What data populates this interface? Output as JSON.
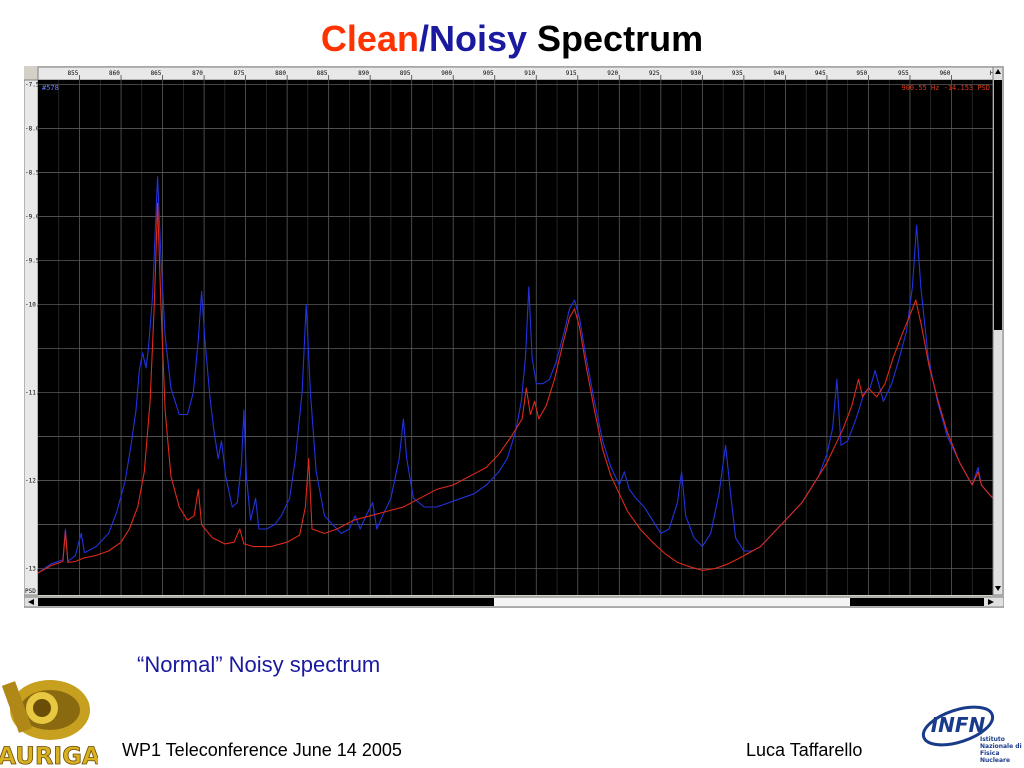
{
  "slide": {
    "title_part1": "Clean",
    "title_sep": "/",
    "title_part2": "Noisy",
    "title_part3": " Spectrum",
    "caption": "“Normal” Noisy spectrum",
    "footer_left": "WP1 Teleconference June 14 2005",
    "footer_right": "Luca Taffarello",
    "logo_left_text": "AURIGA",
    "logo_right_text": "INFN",
    "logo_right_sub": "Istituto Nazionale di Fisica Nucleare"
  },
  "colors": {
    "title_red": "#ff3300",
    "title_blue": "#1a1aa0",
    "plot_bg": "#000000",
    "grid": "#5a5a5a",
    "noisy_series": "#2233dd",
    "clean_series": "#dd2a1a",
    "caption": "#1a1aa0"
  },
  "chart_data": {
    "type": "line",
    "top_left_label": "#578",
    "top_right_label": "900.55 Hz  -14.153 PSD",
    "ylabel": "PSD",
    "xlabel": "Hz",
    "xlim": [
      850,
      965
    ],
    "ylim": [
      -13.3,
      -7.45
    ],
    "x_ticks": [
      "855",
      "860",
      "865",
      "870",
      "875",
      "880",
      "885",
      "890",
      "895",
      "900",
      "905",
      "910",
      "915",
      "920",
      "925",
      "930",
      "935",
      "940",
      "945",
      "950",
      "955",
      "960",
      "Hz"
    ],
    "y_ticks": [
      "-7.5",
      "-8.0",
      "-8.5",
      "-9.0",
      "-9.5",
      "-10.",
      "-11.",
      "-12.",
      "-13."
    ],
    "grid": true,
    "series": [
      {
        "key": "noisy",
        "color": "#2233dd",
        "points": [
          [
            850.0,
            -13.05
          ],
          [
            851.5,
            -12.95
          ],
          [
            853.0,
            -12.9
          ],
          [
            853.3,
            -12.55
          ],
          [
            853.6,
            -12.92
          ],
          [
            854.5,
            -12.85
          ],
          [
            855.2,
            -12.6
          ],
          [
            855.6,
            -12.82
          ],
          [
            857,
            -12.75
          ],
          [
            858.5,
            -12.6
          ],
          [
            859.5,
            -12.35
          ],
          [
            860.5,
            -12.0
          ],
          [
            861.2,
            -11.6
          ],
          [
            861.8,
            -11.2
          ],
          [
            862.2,
            -10.75
          ],
          [
            862.6,
            -10.55
          ],
          [
            863.0,
            -10.72
          ],
          [
            863.3,
            -10.5
          ],
          [
            863.8,
            -9.9
          ],
          [
            864.1,
            -9.2
          ],
          [
            864.4,
            -8.55
          ],
          [
            864.8,
            -9.45
          ],
          [
            865.3,
            -10.35
          ],
          [
            866,
            -10.95
          ],
          [
            867,
            -11.25
          ],
          [
            868,
            -11.25
          ],
          [
            868.7,
            -11.0
          ],
          [
            869.3,
            -10.4
          ],
          [
            869.7,
            -9.85
          ],
          [
            870.1,
            -10.4
          ],
          [
            870.7,
            -11.05
          ],
          [
            871.2,
            -11.45
          ],
          [
            871.7,
            -11.75
          ],
          [
            872.1,
            -11.55
          ],
          [
            872.6,
            -11.95
          ],
          [
            873.4,
            -12.3
          ],
          [
            874.0,
            -12.25
          ],
          [
            874.5,
            -11.8
          ],
          [
            874.8,
            -11.2
          ],
          [
            875.1,
            -11.95
          ],
          [
            875.6,
            -12.45
          ],
          [
            876.2,
            -12.2
          ],
          [
            876.6,
            -12.55
          ],
          [
            877.5,
            -12.55
          ],
          [
            878.5,
            -12.5
          ],
          [
            879.3,
            -12.4
          ],
          [
            880.3,
            -12.2
          ],
          [
            881,
            -11.75
          ],
          [
            881.8,
            -11.0
          ],
          [
            882.3,
            -10.0
          ],
          [
            882.8,
            -11.0
          ],
          [
            883.5,
            -11.9
          ],
          [
            884.5,
            -12.4
          ],
          [
            885.5,
            -12.5
          ],
          [
            886.5,
            -12.6
          ],
          [
            887.5,
            -12.55
          ],
          [
            888.2,
            -12.4
          ],
          [
            888.8,
            -12.55
          ],
          [
            889.5,
            -12.4
          ],
          [
            890.3,
            -12.25
          ],
          [
            890.8,
            -12.55
          ],
          [
            891.5,
            -12.4
          ],
          [
            892.5,
            -12.2
          ],
          [
            893.5,
            -11.75
          ],
          [
            894.0,
            -11.3
          ],
          [
            894.4,
            -11.75
          ],
          [
            895.2,
            -12.2
          ],
          [
            896.5,
            -12.3
          ],
          [
            898,
            -12.3
          ],
          [
            899.5,
            -12.25
          ],
          [
            901,
            -12.2
          ],
          [
            902.5,
            -12.15
          ],
          [
            904,
            -12.05
          ],
          [
            905.5,
            -11.9
          ],
          [
            906.5,
            -11.75
          ],
          [
            907.5,
            -11.45
          ],
          [
            908.2,
            -11.1
          ],
          [
            908.7,
            -10.6
          ],
          [
            909.1,
            -9.8
          ],
          [
            909.5,
            -10.6
          ],
          [
            910,
            -10.9
          ],
          [
            910.8,
            -10.9
          ],
          [
            911.6,
            -10.85
          ],
          [
            912.4,
            -10.65
          ],
          [
            913.4,
            -10.3
          ],
          [
            914.0,
            -10.05
          ],
          [
            914.6,
            -9.95
          ],
          [
            915.2,
            -10.15
          ],
          [
            916.0,
            -10.6
          ],
          [
            917.0,
            -11.1
          ],
          [
            918.0,
            -11.55
          ],
          [
            919.0,
            -11.85
          ],
          [
            920.0,
            -12.05
          ],
          [
            920.6,
            -11.9
          ],
          [
            921.2,
            -12.1
          ],
          [
            922,
            -12.2
          ],
          [
            923.0,
            -12.3
          ],
          [
            924.0,
            -12.45
          ],
          [
            925.0,
            -12.6
          ],
          [
            926.0,
            -12.55
          ],
          [
            927.0,
            -12.25
          ],
          [
            927.5,
            -11.9
          ],
          [
            928.0,
            -12.4
          ],
          [
            929.0,
            -12.65
          ],
          [
            930.0,
            -12.75
          ],
          [
            931.0,
            -12.6
          ],
          [
            932.0,
            -12.15
          ],
          [
            932.8,
            -11.6
          ],
          [
            933.4,
            -12.15
          ],
          [
            934.0,
            -12.65
          ],
          [
            935.0,
            -12.8
          ],
          [
            936,
            -12.8
          ],
          [
            937,
            -12.75
          ],
          [
            938,
            -12.65
          ],
          [
            939,
            -12.55
          ],
          [
            940,
            -12.45
          ],
          [
            941,
            -12.35
          ],
          [
            942,
            -12.25
          ],
          [
            943,
            -12.1
          ],
          [
            944,
            -11.95
          ],
          [
            945,
            -11.7
          ],
          [
            945.7,
            -11.4
          ],
          [
            946.2,
            -10.85
          ],
          [
            946.7,
            -11.6
          ],
          [
            947.5,
            -11.55
          ],
          [
            948.5,
            -11.3
          ],
          [
            949.5,
            -11.0
          ],
          [
            950.2,
            -10.95
          ],
          [
            950.8,
            -10.75
          ],
          [
            951.8,
            -11.1
          ],
          [
            952.8,
            -10.9
          ],
          [
            953.6,
            -10.65
          ],
          [
            954.6,
            -10.3
          ],
          [
            955.3,
            -9.8
          ],
          [
            955.8,
            -9.1
          ],
          [
            956.3,
            -9.8
          ],
          [
            957.2,
            -10.6
          ],
          [
            958.3,
            -11.1
          ],
          [
            959.5,
            -11.5
          ],
          [
            961.0,
            -11.8
          ],
          [
            962.5,
            -12.05
          ],
          [
            963.2,
            -11.85
          ],
          [
            963.6,
            -12.05
          ],
          [
            964.5,
            -12.15
          ],
          [
            965.0,
            -12.2
          ]
        ]
      },
      {
        "key": "clean",
        "color": "#dd2a1a",
        "points": [
          [
            850.0,
            -13.05
          ],
          [
            851.5,
            -12.97
          ],
          [
            853.0,
            -12.92
          ],
          [
            853.3,
            -12.58
          ],
          [
            853.6,
            -12.93
          ],
          [
            854.5,
            -12.92
          ],
          [
            855.5,
            -12.88
          ],
          [
            857,
            -12.85
          ],
          [
            858.5,
            -12.8
          ],
          [
            860,
            -12.7
          ],
          [
            861,
            -12.55
          ],
          [
            862,
            -12.3
          ],
          [
            862.8,
            -11.9
          ],
          [
            863.5,
            -11.1
          ],
          [
            864,
            -10.0
          ],
          [
            864.4,
            -8.85
          ],
          [
            864.8,
            -10.0
          ],
          [
            865.3,
            -11.2
          ],
          [
            866,
            -11.95
          ],
          [
            867,
            -12.3
          ],
          [
            868,
            -12.45
          ],
          [
            868.8,
            -12.4
          ],
          [
            869.3,
            -12.1
          ],
          [
            869.7,
            -12.5
          ],
          [
            871,
            -12.65
          ],
          [
            872.5,
            -12.72
          ],
          [
            873.6,
            -12.7
          ],
          [
            874.3,
            -12.55
          ],
          [
            874.8,
            -12.72
          ],
          [
            876,
            -12.75
          ],
          [
            878,
            -12.75
          ],
          [
            880,
            -12.7
          ],
          [
            881.5,
            -12.62
          ],
          [
            882.2,
            -12.3
          ],
          [
            882.6,
            -11.75
          ],
          [
            883.0,
            -12.55
          ],
          [
            884.5,
            -12.6
          ],
          [
            886,
            -12.55
          ],
          [
            888,
            -12.45
          ],
          [
            890,
            -12.4
          ],
          [
            892,
            -12.35
          ],
          [
            894,
            -12.3
          ],
          [
            896,
            -12.2
          ],
          [
            898,
            -12.1
          ],
          [
            900,
            -12.05
          ],
          [
            902,
            -11.95
          ],
          [
            904,
            -11.85
          ],
          [
            905.5,
            -11.7
          ],
          [
            907,
            -11.5
          ],
          [
            908.3,
            -11.3
          ],
          [
            908.8,
            -10.95
          ],
          [
            909.3,
            -11.25
          ],
          [
            909.8,
            -11.1
          ],
          [
            910.3,
            -11.3
          ],
          [
            911.2,
            -11.15
          ],
          [
            912.2,
            -10.85
          ],
          [
            913.2,
            -10.45
          ],
          [
            914.0,
            -10.15
          ],
          [
            914.6,
            -10.05
          ],
          [
            915.2,
            -10.25
          ],
          [
            916.0,
            -10.7
          ],
          [
            917.0,
            -11.2
          ],
          [
            918.0,
            -11.65
          ],
          [
            919.0,
            -11.95
          ],
          [
            920.0,
            -12.15
          ],
          [
            921.0,
            -12.35
          ],
          [
            922.5,
            -12.55
          ],
          [
            924.0,
            -12.7
          ],
          [
            925.5,
            -12.83
          ],
          [
            927.0,
            -12.93
          ],
          [
            928.5,
            -12.98
          ],
          [
            930.0,
            -13.02
          ],
          [
            931.5,
            -13.0
          ],
          [
            933.0,
            -12.95
          ],
          [
            934.5,
            -12.88
          ],
          [
            936,
            -12.8
          ],
          [
            937,
            -12.75
          ],
          [
            938,
            -12.65
          ],
          [
            939,
            -12.55
          ],
          [
            940,
            -12.45
          ],
          [
            941,
            -12.35
          ],
          [
            942,
            -12.25
          ],
          [
            943,
            -12.1
          ],
          [
            944,
            -11.95
          ],
          [
            945,
            -11.8
          ],
          [
            946,
            -11.6
          ],
          [
            947,
            -11.4
          ],
          [
            948,
            -11.15
          ],
          [
            948.8,
            -10.85
          ],
          [
            949.3,
            -11.05
          ],
          [
            950,
            -10.95
          ],
          [
            951,
            -11.05
          ],
          [
            952,
            -10.9
          ],
          [
            953,
            -10.6
          ],
          [
            954,
            -10.35
          ],
          [
            955,
            -10.12
          ],
          [
            955.7,
            -9.95
          ],
          [
            956.4,
            -10.25
          ],
          [
            957.3,
            -10.7
          ],
          [
            958.4,
            -11.1
          ],
          [
            959.5,
            -11.45
          ],
          [
            961,
            -11.8
          ],
          [
            962.5,
            -12.05
          ],
          [
            963.2,
            -11.9
          ],
          [
            963.6,
            -12.05
          ],
          [
            964.5,
            -12.15
          ],
          [
            965.0,
            -12.2
          ]
        ]
      }
    ]
  }
}
